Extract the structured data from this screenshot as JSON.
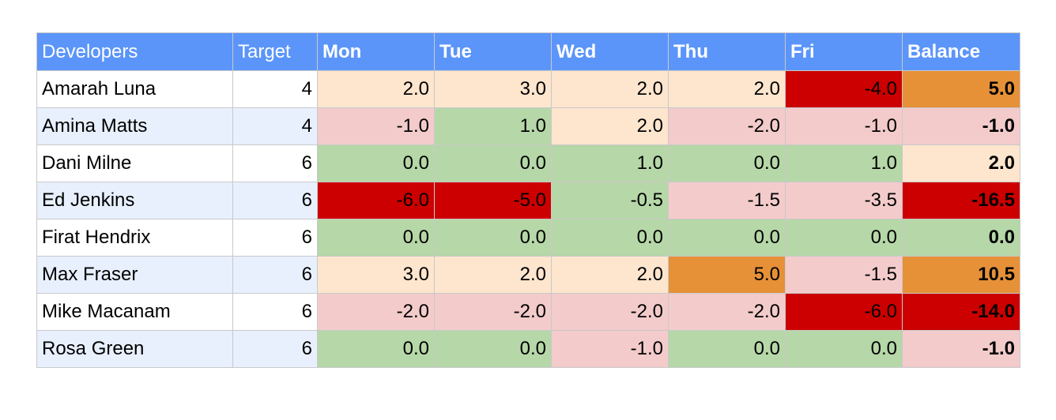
{
  "columns": [
    "Developers",
    "Target",
    "Mon",
    "Tue",
    "Wed",
    "Thu",
    "Fri",
    "Balance"
  ],
  "colors": {
    "header": "#5b95f9",
    "peach": "#fde5ce",
    "pink": "#f3cbcb",
    "green": "#b6d7a8",
    "orange": "#e69138",
    "red": "#cc0000",
    "stripe": "#e8f0fe",
    "white": "#ffffff"
  },
  "rows": [
    {
      "name": "Amarah Luna",
      "target": "4",
      "days": [
        {
          "v": "2.0",
          "c": "peach"
        },
        {
          "v": "3.0",
          "c": "peach"
        },
        {
          "v": "2.0",
          "c": "peach"
        },
        {
          "v": "2.0",
          "c": "peach"
        },
        {
          "v": "-4.0",
          "c": "red"
        }
      ],
      "balance": {
        "v": "5.0",
        "c": "orange"
      }
    },
    {
      "name": "Amina Matts",
      "target": "4",
      "days": [
        {
          "v": "-1.0",
          "c": "pink"
        },
        {
          "v": "1.0",
          "c": "green"
        },
        {
          "v": "2.0",
          "c": "peach"
        },
        {
          "v": "-2.0",
          "c": "pink"
        },
        {
          "v": "-1.0",
          "c": "pink"
        }
      ],
      "balance": {
        "v": "-1.0",
        "c": "pink"
      }
    },
    {
      "name": "Dani Milne",
      "target": "6",
      "days": [
        {
          "v": "0.0",
          "c": "green"
        },
        {
          "v": "0.0",
          "c": "green"
        },
        {
          "v": "1.0",
          "c": "green"
        },
        {
          "v": "0.0",
          "c": "green"
        },
        {
          "v": "1.0",
          "c": "green"
        }
      ],
      "balance": {
        "v": "2.0",
        "c": "peach"
      }
    },
    {
      "name": "Ed Jenkins",
      "target": "6",
      "days": [
        {
          "v": "-6.0",
          "c": "red"
        },
        {
          "v": "-5.0",
          "c": "red"
        },
        {
          "v": "-0.5",
          "c": "green"
        },
        {
          "v": "-1.5",
          "c": "pink"
        },
        {
          "v": "-3.5",
          "c": "pink"
        }
      ],
      "balance": {
        "v": "-16.5",
        "c": "red"
      }
    },
    {
      "name": "Firat Hendrix",
      "target": "6",
      "days": [
        {
          "v": "0.0",
          "c": "green"
        },
        {
          "v": "0.0",
          "c": "green"
        },
        {
          "v": "0.0",
          "c": "green"
        },
        {
          "v": "0.0",
          "c": "green"
        },
        {
          "v": "0.0",
          "c": "green"
        }
      ],
      "balance": {
        "v": "0.0",
        "c": "green"
      }
    },
    {
      "name": "Max Fraser",
      "target": "6",
      "days": [
        {
          "v": "3.0",
          "c": "peach"
        },
        {
          "v": "2.0",
          "c": "peach"
        },
        {
          "v": "2.0",
          "c": "peach"
        },
        {
          "v": "5.0",
          "c": "orange"
        },
        {
          "v": "-1.5",
          "c": "pink"
        }
      ],
      "balance": {
        "v": "10.5",
        "c": "orange"
      }
    },
    {
      "name": "Mike Macanam",
      "target": "6",
      "days": [
        {
          "v": "-2.0",
          "c": "pink"
        },
        {
          "v": "-2.0",
          "c": "pink"
        },
        {
          "v": "-2.0",
          "c": "pink"
        },
        {
          "v": "-2.0",
          "c": "pink"
        },
        {
          "v": "-6.0",
          "c": "red"
        }
      ],
      "balance": {
        "v": "-14.0",
        "c": "red"
      }
    },
    {
      "name": "Rosa Green",
      "target": "6",
      "days": [
        {
          "v": "0.0",
          "c": "green"
        },
        {
          "v": "0.0",
          "c": "green"
        },
        {
          "v": "-1.0",
          "c": "pink"
        },
        {
          "v": "0.0",
          "c": "green"
        },
        {
          "v": "0.0",
          "c": "green"
        }
      ],
      "balance": {
        "v": "-1.0",
        "c": "pink"
      }
    }
  ]
}
